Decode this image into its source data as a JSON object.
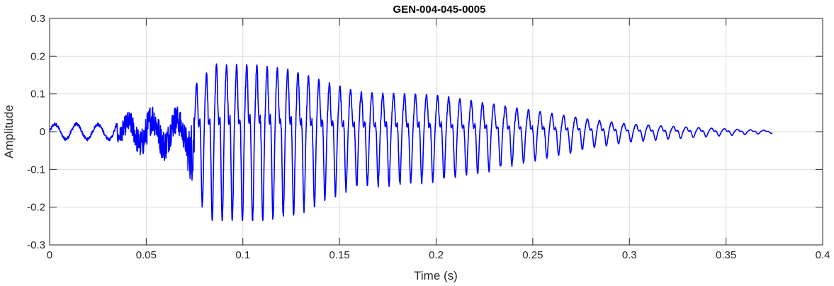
{
  "chart_data": {
    "type": "line",
    "title": "GEN-004-045-0005",
    "xlabel": "Time (s)",
    "ylabel": "Amplitude",
    "xlim": [
      0,
      0.4
    ],
    "ylim": [
      -0.3,
      0.3
    ],
    "xticks": [
      0,
      0.05,
      0.1,
      0.15,
      0.2,
      0.25,
      0.3,
      0.35,
      0.4
    ],
    "xtick_labels": [
      "0",
      "0.05",
      "0.1",
      "0.15",
      "0.2",
      "0.25",
      "0.3",
      "0.35",
      "0.4"
    ],
    "yticks": [
      -0.3,
      -0.2,
      -0.1,
      0,
      0.1,
      0.2,
      0.3
    ],
    "ytick_labels": [
      "-0.3",
      "-0.2",
      "-0.1",
      "0",
      "0.1",
      "0.2",
      "0.3"
    ],
    "grid": true,
    "series": [
      {
        "color": "#0000ff",
        "x_range": [
          0,
          0.374
        ],
        "envelope": [
          [
            0.0,
            0.02
          ],
          [
            0.02,
            0.02
          ],
          [
            0.03,
            0.018
          ],
          [
            0.04,
            0.04
          ],
          [
            0.05,
            0.06
          ],
          [
            0.06,
            0.06
          ],
          [
            0.07,
            0.05
          ],
          [
            0.075,
            0.15
          ],
          [
            0.085,
            0.22
          ],
          [
            0.1,
            0.22
          ],
          [
            0.12,
            0.21
          ],
          [
            0.14,
            0.17
          ],
          [
            0.16,
            0.13
          ],
          [
            0.2,
            0.12
          ],
          [
            0.22,
            0.1
          ],
          [
            0.25,
            0.07
          ],
          [
            0.28,
            0.04
          ],
          [
            0.3,
            0.025
          ],
          [
            0.33,
            0.015
          ],
          [
            0.36,
            0.007
          ],
          [
            0.374,
            0.004
          ]
        ]
      }
    ]
  }
}
